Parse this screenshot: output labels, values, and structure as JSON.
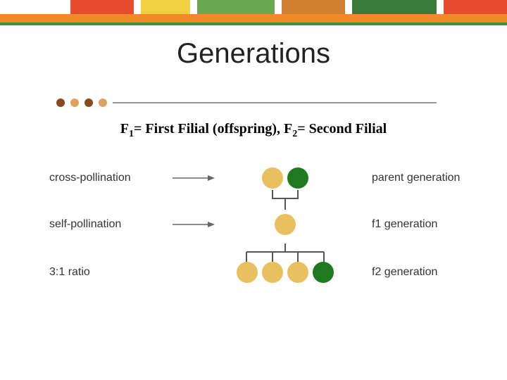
{
  "colors": {
    "orange_bar": "#f28a2a",
    "green_line": "#3f8f3f",
    "bullet_dark": "#8a4a1f",
    "bullet_light": "#e0a060",
    "hr": "#777777",
    "pea_yellow": "#e8c060",
    "pea_green": "#1f7a1f",
    "tree_line": "#555555",
    "arrow": "#666666",
    "blotch1": "#e84c2f",
    "blotch2": "#f0d040",
    "blotch3": "#6aa84f",
    "blotch4": "#d08030",
    "blotch5": "#3a7a3a"
  },
  "title": {
    "text": "Generations",
    "fontsize": 40
  },
  "subtitle": {
    "prefix1": "F",
    "sub1": "1",
    "mid1": "= First Filial (offspring), F",
    "sub2": "2",
    "tail": "= Second Filial",
    "fontsize": 20
  },
  "labels_fontsize": 16,
  "rows": {
    "parent": {
      "left": "cross-pollination",
      "right": "parent generation",
      "show_arrow": true,
      "peas": [
        {
          "color_key": "pea_yellow"
        },
        {
          "color_key": "pea_green"
        }
      ]
    },
    "f1": {
      "left": "self-pollination",
      "right": "f1 generation",
      "show_arrow": true,
      "peas": [
        {
          "color_key": "pea_yellow"
        }
      ]
    },
    "f2": {
      "left": "3:1 ratio",
      "right": "f2 generation",
      "show_arrow": false,
      "peas": [
        {
          "color_key": "pea_yellow"
        },
        {
          "color_key": "pea_yellow"
        },
        {
          "color_key": "pea_yellow"
        },
        {
          "color_key": "pea_green"
        }
      ]
    }
  },
  "hr_width": 460,
  "pea_diameter": 30
}
